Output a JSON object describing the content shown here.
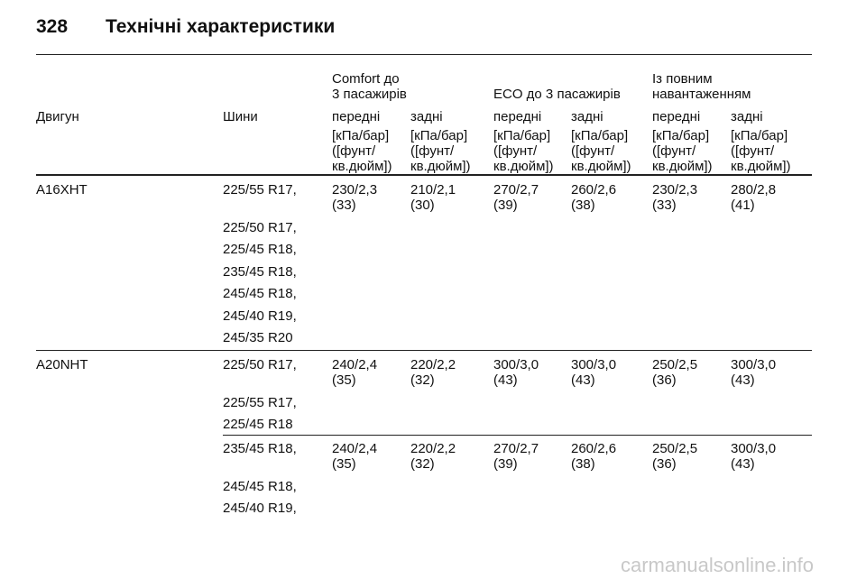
{
  "header": {
    "page_number": "328",
    "title": "Технічні характеристики"
  },
  "table": {
    "group_headers": [
      [
        "Comfort до",
        "3 пасажирів"
      ],
      [
        "ECO до 3 пасажирів"
      ],
      [
        "Із повним",
        "навантаженням"
      ]
    ],
    "column_headers": [
      "Двигун",
      "Шини",
      "передні",
      "задні",
      "передні",
      "задні",
      "передні",
      "задні"
    ],
    "units": [
      "[кПа/бар]",
      "([фунт/",
      "кв.дюйм])"
    ],
    "rows": [
      {
        "engine": "A16XHT",
        "tyres": [
          "225/55 R17,",
          "225/50 R17,",
          "225/45 R18,",
          "235/45 R18,",
          "245/45 R18,",
          "245/40 R19,",
          "245/35 R20"
        ],
        "values": [
          [
            "230/2,3",
            "(33)"
          ],
          [
            "210/2,1",
            "(30)"
          ],
          [
            "270/2,7",
            "(39)"
          ],
          [
            "260/2,6",
            "(38)"
          ],
          [
            "230/2,3",
            "(33)"
          ],
          [
            "280/2,8",
            "(41)"
          ]
        ]
      },
      {
        "engine": "A20NHT",
        "tyres": [
          "225/50 R17,",
          "225/55 R17,",
          "225/45 R18"
        ],
        "values": [
          [
            "240/2,4",
            "(35)"
          ],
          [
            "220/2,2",
            "(32)"
          ],
          [
            "300/3,0",
            "(43)"
          ],
          [
            "300/3,0",
            "(43)"
          ],
          [
            "250/2,5",
            "(36)"
          ],
          [
            "300/3,0",
            "(43)"
          ]
        ]
      },
      {
        "tyres": [
          "235/45 R18,",
          "245/45 R18,",
          "245/40 R19,"
        ],
        "values": [
          [
            "240/2,4",
            "(35)"
          ],
          [
            "220/2,2",
            "(32)"
          ],
          [
            "270/2,7",
            "(39)"
          ],
          [
            "260/2,6",
            "(38)"
          ],
          [
            "250/2,5",
            "(36)"
          ],
          [
            "300/3,0",
            "(43)"
          ]
        ]
      }
    ]
  },
  "footer": {
    "watermark": "carmanualsonline.info"
  }
}
